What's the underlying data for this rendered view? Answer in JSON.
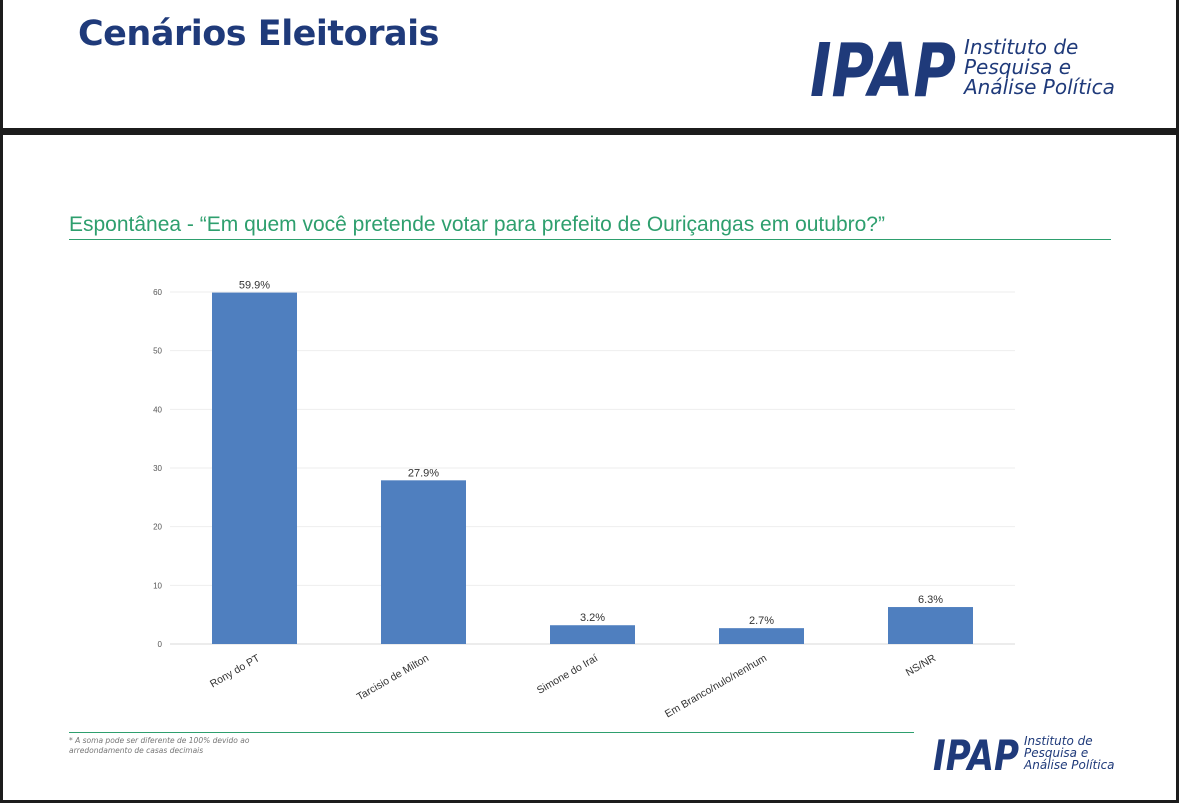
{
  "header": {
    "title": "Cenários Eleitorais"
  },
  "logo": {
    "mark": "IPAP",
    "line1": "Instituto de",
    "line2": "Pesquisa e",
    "line3": "Análise Política",
    "color": "#1f3a7a"
  },
  "question": "Espontânea - “Em quem você pretende votar para prefeito de Ouriçangas em outubro?”",
  "footnote": "* A soma pode ser diferente de 100% devido ao arredondamento de casas decimais",
  "colors": {
    "bar": "#4f7fbf",
    "accent": "#2e9f6e",
    "title": "#1f3a7a"
  },
  "chart_data": {
    "type": "bar",
    "categories": [
      "Rony do PT",
      "Tarcisio de Milton",
      "Simone do Iraí",
      "Em Branco/nulo/nenhum",
      "NS/NR"
    ],
    "values": [
      59.9,
      27.9,
      3.2,
      2.7,
      6.3
    ],
    "data_labels": [
      "59.9%",
      "27.9%",
      "3.2%",
      "2.7%",
      "6.3%"
    ],
    "yticks": [
      0,
      10,
      20,
      30,
      40,
      50,
      60
    ],
    "ylim": [
      0,
      60
    ],
    "grid": true,
    "legend": "none",
    "title": "",
    "xlabel": "",
    "ylabel": ""
  }
}
